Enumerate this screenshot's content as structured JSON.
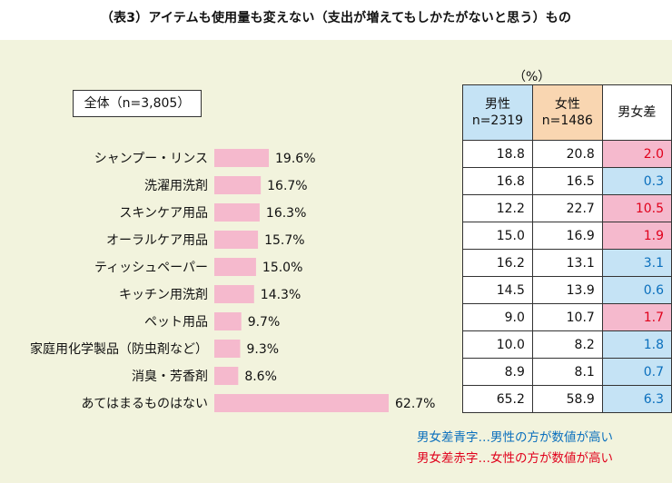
{
  "title": "（表3）アイテムも使用量も変えない（支出が増えてもしかたがないと思う）もの",
  "total_label": "全体（n=3,805）",
  "unit": "（%）",
  "colors": {
    "bar": "#f5b9cd",
    "background": "#f2f3dd",
    "male_header": "#c5e3f5",
    "female_header": "#f9d6b1",
    "male_higher_text": "#0a6fbd",
    "female_higher_text": "#e0001b"
  },
  "chart_data": {
    "type": "bar",
    "orientation": "horizontal",
    "categories": [
      "シャンプー・リンス",
      "洗濯用洗剤",
      "スキンケア用品",
      "オーラルケア用品",
      "ティッシュペーパー",
      "キッチン用洗剤",
      "ペット用品",
      "家庭用化学製品（防虫剤など）",
      "消臭・芳香剤",
      "あてはまるものはない"
    ],
    "values": [
      19.6,
      16.7,
      16.3,
      15.7,
      15.0,
      14.3,
      9.7,
      9.3,
      8.6,
      62.7
    ],
    "value_labels": [
      "19.6%",
      "16.7%",
      "16.3%",
      "15.7%",
      "15.0%",
      "14.3%",
      "9.7%",
      "9.3%",
      "8.6%",
      "62.7%"
    ],
    "xlim": [
      0,
      62.7
    ]
  },
  "table": {
    "headers": {
      "male": "男性",
      "male_n": "n=2319",
      "female": "女性",
      "female_n": "n=1486",
      "diff": "男女差"
    },
    "rows": [
      {
        "male": "18.8",
        "female": "20.8",
        "diff": "2.0",
        "higher": "female"
      },
      {
        "male": "16.8",
        "female": "16.5",
        "diff": "0.3",
        "higher": "male"
      },
      {
        "male": "12.2",
        "female": "22.7",
        "diff": "10.5",
        "higher": "female"
      },
      {
        "male": "15.0",
        "female": "16.9",
        "diff": "1.9",
        "higher": "female"
      },
      {
        "male": "16.2",
        "female": "13.1",
        "diff": "3.1",
        "higher": "male"
      },
      {
        "male": "14.5",
        "female": "13.9",
        "diff": "0.6",
        "higher": "male"
      },
      {
        "male": "9.0",
        "female": "10.7",
        "diff": "1.7",
        "higher": "female"
      },
      {
        "male": "10.0",
        "female": "8.2",
        "diff": "1.8",
        "higher": "male"
      },
      {
        "male": "8.9",
        "female": "8.1",
        "diff": "0.7",
        "higher": "male"
      },
      {
        "male": "65.2",
        "female": "58.9",
        "diff": "6.3",
        "higher": "male"
      }
    ]
  },
  "notes": {
    "blue": "男女差青字…男性の方が数値が高い",
    "red": "男女差赤字…女性の方が数値が高い"
  }
}
